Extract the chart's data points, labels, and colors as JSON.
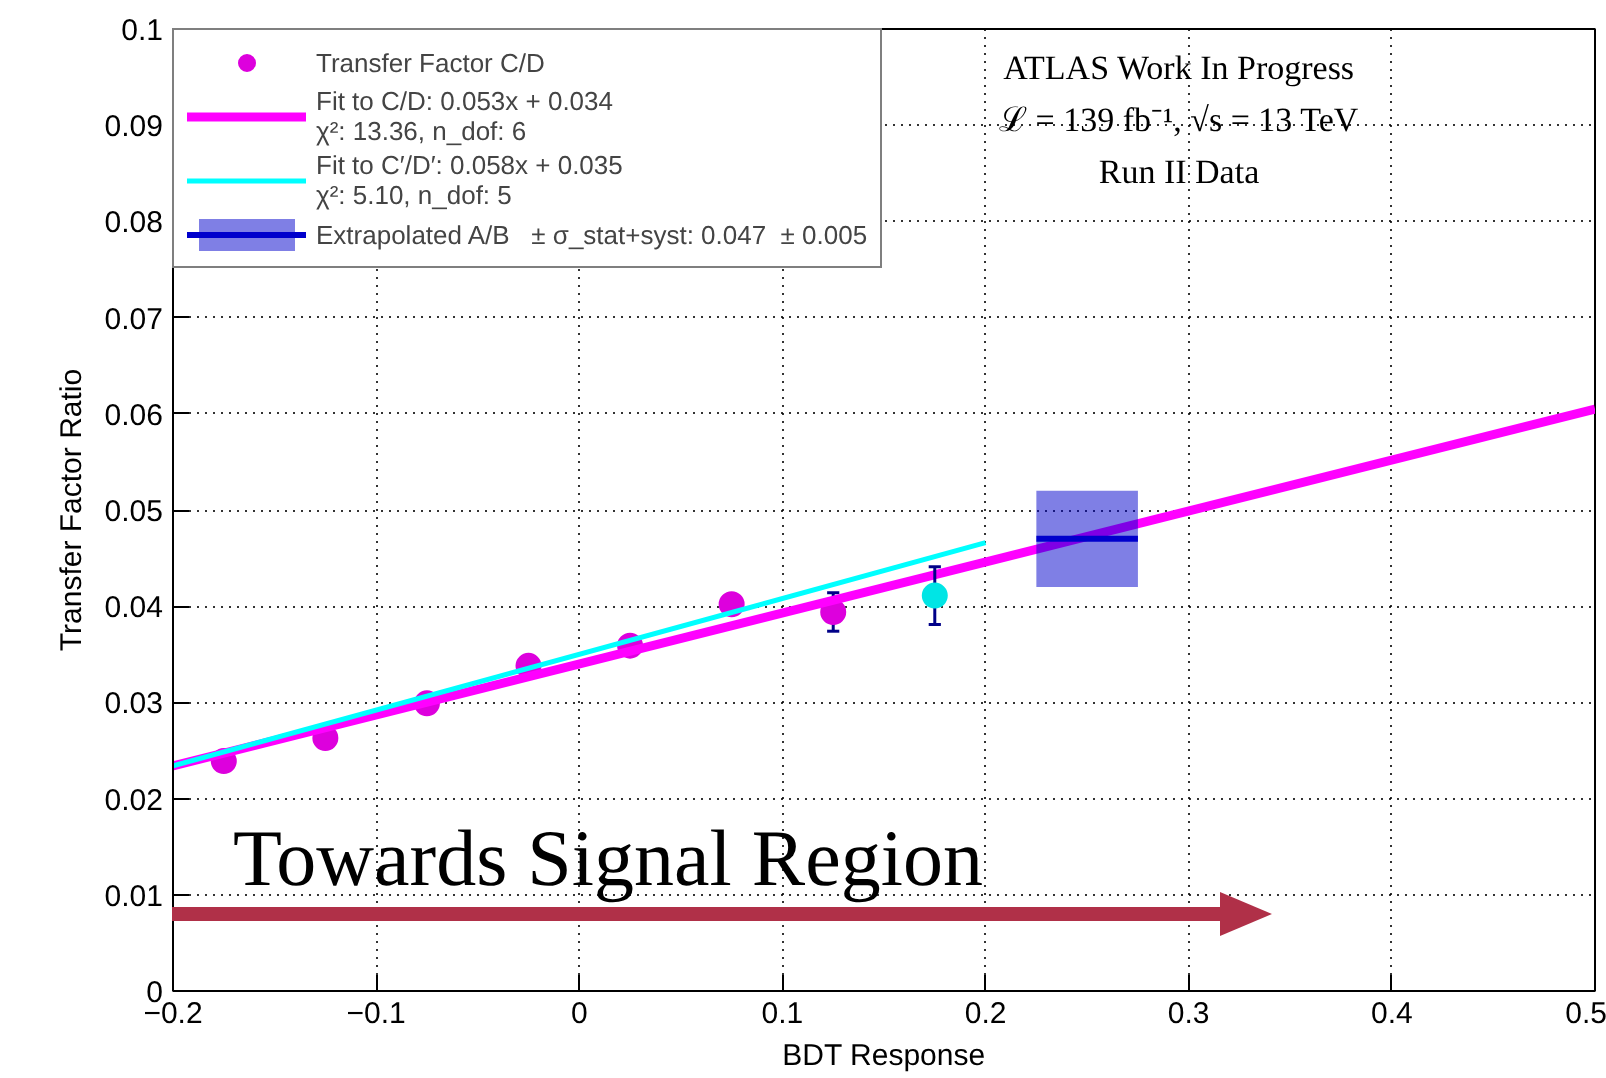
{
  "chart_data": {
    "type": "scatter",
    "xlabel": "BDT Response",
    "ylabel": "Transfer Factor Ratio",
    "xlim": [
      -0.2,
      0.5
    ],
    "ylim": [
      0,
      0.1
    ],
    "xticks": [
      {
        "value": -0.2,
        "label": "−0.2"
      },
      {
        "value": -0.1,
        "label": "−0.1"
      },
      0,
      0.1,
      0.2,
      0.3,
      0.4,
      0.5
    ],
    "yticks": [
      0,
      0.01,
      0.02,
      0.03,
      0.04,
      0.05,
      0.06,
      0.07,
      0.08,
      0.09,
      0.1
    ],
    "grid": true,
    "legend": "top left",
    "series": [
      {
        "name": "Transfer Factor C/D",
        "marker": "circle",
        "color": "#dd00dd",
        "x": [
          -0.175,
          -0.125,
          -0.075,
          -0.025,
          0.025,
          0.075,
          0.125
        ],
        "values": [
          0.0239,
          0.0263,
          0.0299,
          0.0338,
          0.0359,
          0.0402,
          0.0394
        ],
        "errors": [
          null,
          null,
          null,
          null,
          null,
          0.0004,
          0.002
        ]
      },
      {
        "name": "Fit to C/D: 0.053x + 0.034\nχ²: 13.36, n_dof: 6",
        "type": "line",
        "color": "#ff00ff",
        "x": [
          -0.2,
          0.5
        ],
        "values": [
          0.0234,
          0.0605
        ]
      },
      {
        "marker": "circle",
        "color": "#00e5e5",
        "x": [
          0.175
        ],
        "values": [
          0.0411
        ],
        "errors": [
          0.003
        ]
      },
      {
        "name": "Fit to C′/D′: 0.058x + 0.035\nχ²: 5.10, n_dof: 5",
        "type": "line",
        "color": "#00ffff",
        "x": [
          -0.2,
          0.2
        ],
        "values": [
          0.0234,
          0.0466
        ]
      },
      {
        "name": "Extrapolated A/B   ± σ_stat+syst: 0.047  ± 0.005",
        "type": "box",
        "color": "#0000cc",
        "x": [
          0.25
        ],
        "boxes": [
          {
            "low": 0.042,
            "q1": 0.042,
            "median": 0.047,
            "q3": 0.052,
            "high": 0.052
          }
        ]
      }
    ],
    "annotations": [
      "ATLAS Work In Progress",
      "ℒ = 139 fb⁻¹, √s = 13 TeV",
      "Run II Data",
      "Towards Signal Region"
    ]
  }
}
